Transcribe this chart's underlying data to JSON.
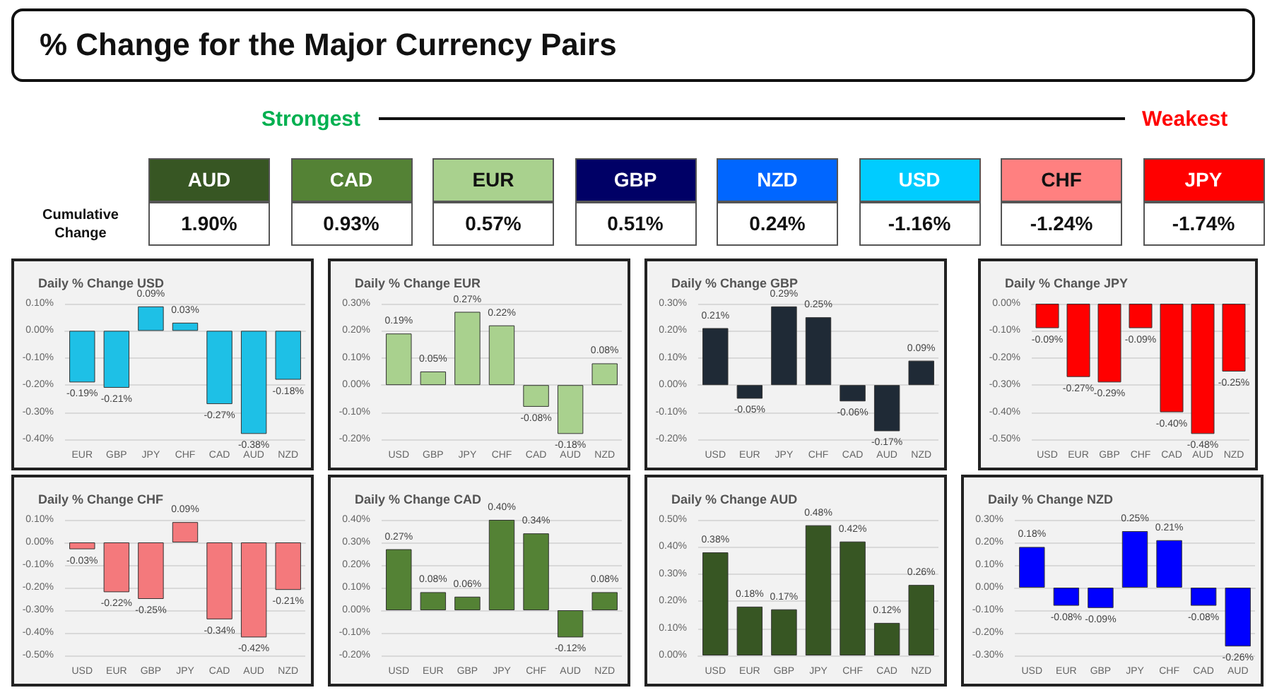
{
  "chart_data": [
    {
      "type": "other",
      "title": "% Change for the Major Currency Pairs",
      "annotations": [
        "Strongest",
        "Weakest",
        "Cumulative Change"
      ],
      "categories": [
        "AUD",
        "CAD",
        "EUR",
        "GBP",
        "NZD",
        "USD",
        "CHF",
        "JPY"
      ],
      "value_labels": [
        "1.90%",
        "0.93%",
        "0.57%",
        "0.51%",
        "0.24%",
        "-1.16%",
        "-1.24%",
        "-1.74%"
      ],
      "colors": [
        "#375623",
        "#548235",
        "#a9d18e",
        "#000066",
        "#0066ff",
        "#00ccff",
        "#ff8080",
        "#ff0000"
      ]
    },
    {
      "type": "bar",
      "title": "Daily % Change USD",
      "categories": [
        "EUR",
        "GBP",
        "JPY",
        "CHF",
        "CAD",
        "AUD",
        "NZD"
      ],
      "values": [
        -0.19,
        -0.21,
        0.09,
        0.03,
        -0.27,
        -0.38,
        -0.18
      ],
      "value_labels": [
        "-0.19%",
        "-0.21%",
        "0.09%",
        "0.03%",
        "-0.27%",
        "-0.38%",
        "-0.18%"
      ],
      "color": "#1ec0e6",
      "ylim": [
        -0.4,
        0.1
      ],
      "yticks": [
        {
          "value": -0.4,
          "label": "-0.40%"
        },
        {
          "value": -0.3,
          "label": "-0.30%"
        },
        {
          "value": -0.2,
          "label": "-0.20%"
        },
        {
          "value": -0.1,
          "label": "-0.10%"
        },
        {
          "value": 0,
          "label": "0.00%"
        },
        {
          "value": 0.1,
          "label": "0.10%"
        }
      ],
      "grid": "y"
    },
    {
      "type": "bar",
      "title": "Daily % Change EUR",
      "categories": [
        "USD",
        "GBP",
        "JPY",
        "CHF",
        "CAD",
        "AUD",
        "NZD"
      ],
      "values": [
        0.19,
        0.05,
        0.27,
        0.22,
        -0.08,
        -0.18,
        0.08
      ],
      "value_labels": [
        "0.19%",
        "0.05%",
        "0.27%",
        "0.22%",
        "-0.08%",
        "-0.18%",
        "0.08%"
      ],
      "color": "#a9d18e",
      "ylim": [
        -0.2,
        0.3
      ],
      "yticks": [
        {
          "value": -0.2,
          "label": "-0.20%"
        },
        {
          "value": -0.1,
          "label": "-0.10%"
        },
        {
          "value": 0,
          "label": "0.00%"
        },
        {
          "value": 0.1,
          "label": "0.10%"
        },
        {
          "value": 0.2,
          "label": "0.20%"
        },
        {
          "value": 0.3,
          "label": "0.30%"
        }
      ],
      "grid": "y"
    },
    {
      "type": "bar",
      "title": "Daily % Change GBP",
      "categories": [
        "USD",
        "EUR",
        "JPY",
        "CHF",
        "CAD",
        "AUD",
        "NZD"
      ],
      "values": [
        0.21,
        -0.05,
        0.29,
        0.25,
        -0.06,
        -0.17,
        0.09
      ],
      "value_labels": [
        "0.21%",
        "-0.05%",
        "0.29%",
        "0.25%",
        "-0.06%",
        "-0.17%",
        "0.09%"
      ],
      "color": "#1f2a36",
      "ylim": [
        -0.2,
        0.3
      ],
      "yticks": [
        {
          "value": -0.2,
          "label": "-0.20%"
        },
        {
          "value": -0.1,
          "label": "-0.10%"
        },
        {
          "value": 0,
          "label": "0.00%"
        },
        {
          "value": 0.1,
          "label": "0.10%"
        },
        {
          "value": 0.2,
          "label": "0.20%"
        },
        {
          "value": 0.3,
          "label": "0.30%"
        }
      ],
      "grid": "y"
    },
    {
      "type": "bar",
      "title": "Daily % Change JPY",
      "categories": [
        "USD",
        "EUR",
        "GBP",
        "CHF",
        "CAD",
        "AUD",
        "NZD"
      ],
      "values": [
        -0.09,
        -0.27,
        -0.29,
        -0.09,
        -0.4,
        -0.48,
        -0.25
      ],
      "value_labels": [
        "-0.09%",
        "-0.27%",
        "-0.29%",
        "-0.09%",
        "-0.40%",
        "-0.48%",
        "-0.25%"
      ],
      "color": "#ff0000",
      "ylim": [
        -0.5,
        0
      ],
      "yticks": [
        {
          "value": -0.5,
          "label": "-0.50%"
        },
        {
          "value": -0.4,
          "label": "-0.40%"
        },
        {
          "value": -0.3,
          "label": "-0.30%"
        },
        {
          "value": -0.2,
          "label": "-0.20%"
        },
        {
          "value": -0.1,
          "label": "-0.10%"
        },
        {
          "value": 0,
          "label": "0.00%"
        }
      ],
      "grid": "y"
    },
    {
      "type": "bar",
      "title": "Daily % Change CHF",
      "categories": [
        "USD",
        "EUR",
        "GBP",
        "JPY",
        "CAD",
        "AUD",
        "NZD"
      ],
      "values": [
        -0.03,
        -0.22,
        -0.25,
        0.09,
        -0.34,
        -0.42,
        -0.21
      ],
      "value_labels": [
        "-0.03%",
        "-0.22%",
        "-0.25%",
        "0.09%",
        "-0.34%",
        "-0.42%",
        "-0.21%"
      ],
      "color": "#f4797c",
      "ylim": [
        -0.5,
        0.1
      ],
      "yticks": [
        {
          "value": -0.5,
          "label": "-0.50%"
        },
        {
          "value": -0.4,
          "label": "-0.40%"
        },
        {
          "value": -0.3,
          "label": "-0.30%"
        },
        {
          "value": -0.2,
          "label": "-0.20%"
        },
        {
          "value": -0.1,
          "label": "-0.10%"
        },
        {
          "value": 0,
          "label": "0.00%"
        },
        {
          "value": 0.1,
          "label": "0.10%"
        }
      ],
      "grid": "y"
    },
    {
      "type": "bar",
      "title": "Daily % Change CAD",
      "categories": [
        "USD",
        "EUR",
        "GBP",
        "JPY",
        "CHF",
        "AUD",
        "NZD"
      ],
      "values": [
        0.27,
        0.08,
        0.06,
        0.4,
        0.34,
        -0.12,
        0.08
      ],
      "value_labels": [
        "0.27%",
        "0.08%",
        "0.06%",
        "0.40%",
        "0.34%",
        "-0.12%",
        "0.08%"
      ],
      "color": "#548235",
      "ylim": [
        -0.2,
        0.4
      ],
      "yticks": [
        {
          "value": -0.2,
          "label": "-0.20%"
        },
        {
          "value": -0.1,
          "label": "-0.10%"
        },
        {
          "value": 0,
          "label": "0.00%"
        },
        {
          "value": 0.1,
          "label": "0.10%"
        },
        {
          "value": 0.2,
          "label": "0.20%"
        },
        {
          "value": 0.3,
          "label": "0.30%"
        },
        {
          "value": 0.4,
          "label": "0.40%"
        }
      ],
      "grid": "y"
    },
    {
      "type": "bar",
      "title": "Daily % Change AUD",
      "categories": [
        "USD",
        "EUR",
        "GBP",
        "JPY",
        "CHF",
        "CAD",
        "NZD"
      ],
      "values": [
        0.38,
        0.18,
        0.17,
        0.48,
        0.42,
        0.12,
        0.26
      ],
      "value_labels": [
        "0.38%",
        "0.18%",
        "0.17%",
        "0.48%",
        "0.42%",
        "0.12%",
        "0.26%"
      ],
      "color": "#375623",
      "ylim": [
        0,
        0.5
      ],
      "yticks": [
        {
          "value": 0,
          "label": "0.00%"
        },
        {
          "value": 0.1,
          "label": "0.10%"
        },
        {
          "value": 0.2,
          "label": "0.20%"
        },
        {
          "value": 0.3,
          "label": "0.30%"
        },
        {
          "value": 0.4,
          "label": "0.40%"
        },
        {
          "value": 0.5,
          "label": "0.50%"
        }
      ],
      "grid": "y"
    },
    {
      "type": "bar",
      "title": "Daily % Change NZD",
      "categories": [
        "USD",
        "EUR",
        "GBP",
        "JPY",
        "CHF",
        "CAD",
        "AUD"
      ],
      "values": [
        0.18,
        -0.08,
        -0.09,
        0.25,
        0.21,
        -0.08,
        -0.26
      ],
      "value_labels": [
        "0.18%",
        "-0.08%",
        "-0.09%",
        "0.25%",
        "0.21%",
        "-0.08%",
        "-0.26%"
      ],
      "color": "#0000ff",
      "ylim": [
        -0.3,
        0.3
      ],
      "yticks": [
        {
          "value": -0.3,
          "label": "-0.30%"
        },
        {
          "value": -0.2,
          "label": "-0.20%"
        },
        {
          "value": -0.1,
          "label": "-0.10%"
        },
        {
          "value": 0,
          "label": "0.00%"
        },
        {
          "value": 0.1,
          "label": "0.10%"
        },
        {
          "value": 0.2,
          "label": "0.20%"
        },
        {
          "value": 0.3,
          "label": "0.30%"
        }
      ],
      "grid": "y"
    }
  ]
}
